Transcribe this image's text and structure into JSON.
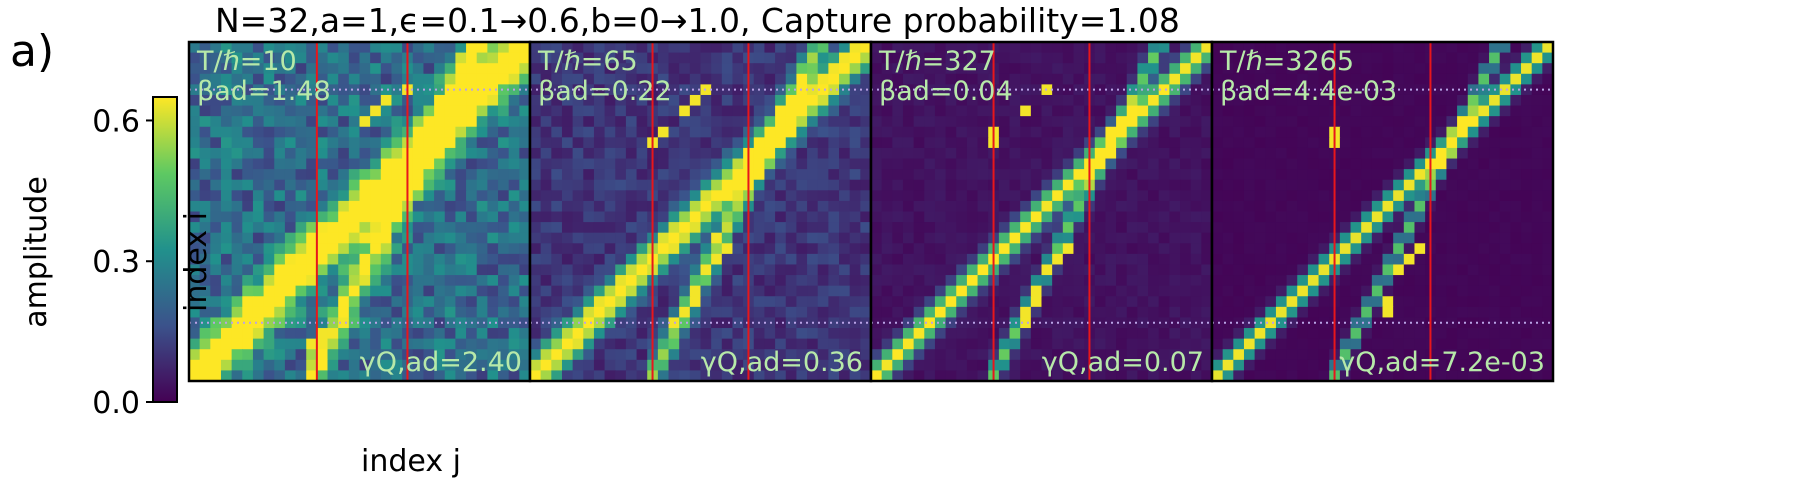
{
  "figure": {
    "panel_letter": "a)",
    "title": "N=32,a=1,ϵ=0.1→0.6,b=0→1.0, Capture probability=1.08",
    "xlabel": "index j",
    "ylabel": "index i",
    "colorbar_label": "amplitude"
  },
  "colors": {
    "colormap": [
      "#440154",
      "#3b528b",
      "#21918c",
      "#5ec962",
      "#fde725"
    ],
    "vertical_marker_line": "#e8161b",
    "dotted_guide_line": "#b9a3e6",
    "annotation_text": "#b7e9a9"
  },
  "chart_data": {
    "type": "heatmap",
    "grid_size": 32,
    "colorscale": "viridis",
    "colorbar": {
      "range": [
        0.0,
        0.65
      ],
      "ticks": [
        0.0,
        0.3,
        0.6
      ],
      "tick_labels": [
        "0.0",
        "0.3",
        "0.6"
      ]
    },
    "dotted_rows_from_top": [
      4.5,
      26.5
    ],
    "panels": [
      {
        "t_label": "T/ℏ=10",
        "beta_label": "βad=1.48",
        "gamma_label": "γQ,ad=2.40",
        "red_lines_j": [
          11.5,
          20
        ],
        "bright_cells": [
          [
            5,
            18
          ],
          [
            6,
            17
          ],
          [
            7,
            16
          ],
          [
            4,
            20
          ],
          [
            26,
            14
          ],
          [
            27,
            12
          ],
          [
            27,
            13
          ],
          [
            28,
            11
          ],
          [
            28,
            12
          ]
        ],
        "randomness": 1.0
      },
      {
        "t_label": "T/ℏ=65",
        "beta_label": "βad=0.22",
        "gamma_label": "γQ,ad=0.36",
        "red_lines_j": [
          11,
          20
        ],
        "bright_cells": [
          [
            0,
            30
          ],
          [
            1,
            29
          ],
          [
            2,
            28
          ],
          [
            3,
            27
          ],
          [
            4,
            16
          ],
          [
            5,
            15
          ],
          [
            6,
            14
          ],
          [
            8,
            12
          ],
          [
            9,
            11
          ],
          [
            18,
            17
          ],
          [
            19,
            18
          ],
          [
            20,
            17
          ],
          [
            21,
            16
          ],
          [
            23,
            15
          ],
          [
            24,
            15
          ],
          [
            25,
            14
          ],
          [
            26,
            13
          ]
        ],
        "randomness": 0.45
      },
      {
        "t_label": "T/ℏ=327",
        "beta_label": "βad=0.04",
        "gamma_label": "γQ,ad=0.07",
        "red_lines_j": [
          11,
          20
        ],
        "bright_cells": [
          [
            0,
            31
          ],
          [
            1,
            30
          ],
          [
            2,
            29
          ],
          [
            3,
            28
          ],
          [
            4,
            16
          ],
          [
            6,
            14
          ],
          [
            8,
            11
          ],
          [
            9,
            11
          ],
          [
            19,
            18
          ],
          [
            20,
            17
          ],
          [
            21,
            16
          ],
          [
            23,
            15
          ],
          [
            24,
            15
          ],
          [
            25,
            14
          ],
          [
            26,
            14
          ]
        ],
        "randomness": 0.15
      },
      {
        "t_label": "T/ℏ=3265",
        "beta_label": "βad=4.4e-03",
        "gamma_label": "γQ,ad=7.2e-03",
        "red_lines_j": [
          11,
          20
        ],
        "bright_cells": [
          [
            8,
            11
          ],
          [
            9,
            11
          ],
          [
            19,
            19
          ],
          [
            20,
            18
          ],
          [
            21,
            17
          ],
          [
            24,
            16
          ],
          [
            25,
            16
          ]
        ],
        "randomness": 0.05
      }
    ]
  }
}
